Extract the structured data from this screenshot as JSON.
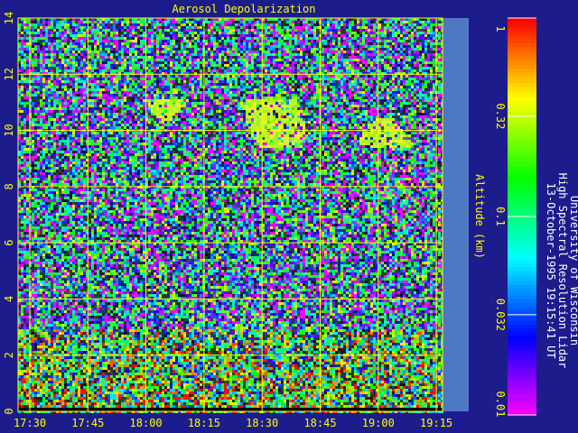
{
  "chart_data": {
    "type": "heatmap",
    "title": "Aerosol Depolarization",
    "ylabel": "Altitude (km)",
    "xlabel": "",
    "ylim": [
      0,
      14
    ],
    "yticks": [
      "0",
      "2",
      "4",
      "6",
      "8",
      "10",
      "12",
      "14"
    ],
    "xticks": [
      "17:30",
      "17:45",
      "18:00",
      "18:15",
      "18:30",
      "18:45",
      "19:00",
      "19:15"
    ],
    "grid": true,
    "colorbar": {
      "scale": "log",
      "range": [
        0.01,
        1
      ],
      "ticks": [
        "1",
        "0.32",
        "0.1",
        "0.032",
        "0.01"
      ]
    },
    "side_text": {
      "line1": "University of Wisconsin",
      "line2": "High Spectral Resolution Lidar",
      "line3": "13-October-1995 19:15:41 UT"
    },
    "colors": {
      "background": "#1c1c8c",
      "text": "#ffff00",
      "grid": "#ffff00",
      "no_data": "#4f78c4"
    }
  }
}
